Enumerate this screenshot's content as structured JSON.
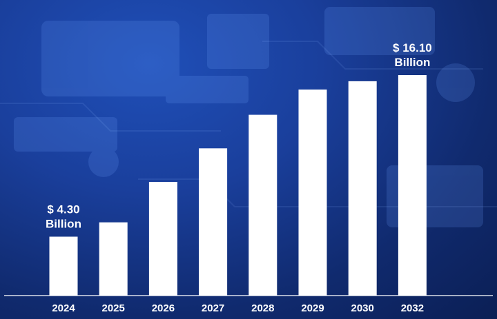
{
  "chart_data": {
    "type": "bar",
    "categories": [
      "2024",
      "2025",
      "2026",
      "2027",
      "2028",
      "2029",
      "2030",
      "2032"
    ],
    "values": [
      4.3,
      5.35,
      8.3,
      10.75,
      13.2,
      15.05,
      15.65,
      16.1
    ],
    "title": "",
    "xlabel": "",
    "ylabel": "",
    "ylim": [
      0,
      16.1
    ],
    "grid": false,
    "legend": "none",
    "bar_color": "#ffffff",
    "background": "#1a3f9c",
    "annotations": [
      {
        "category": "2024",
        "line1": "$ 4.30",
        "line2": "Billion"
      },
      {
        "category": "2032",
        "line1": "$ 16.10",
        "line2": "Billion"
      }
    ]
  }
}
